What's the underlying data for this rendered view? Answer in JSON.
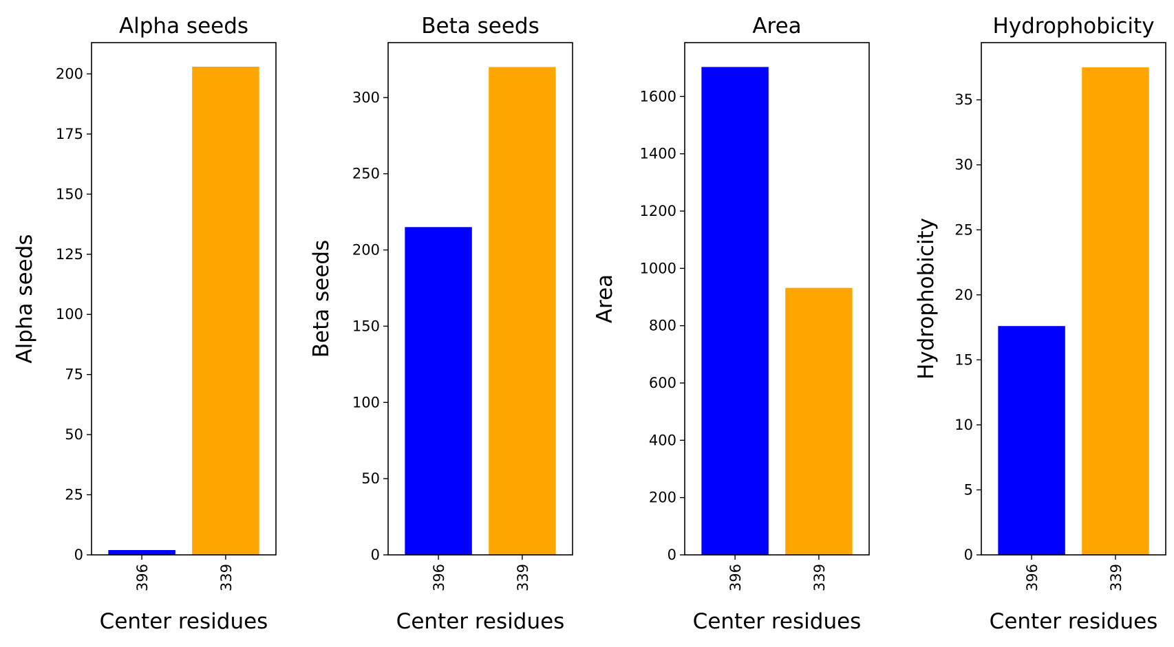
{
  "chart_data": [
    {
      "type": "bar",
      "title": "Alpha seeds",
      "xlabel": "Center residues",
      "ylabel": "Alpha seeds",
      "categories": [
        "396",
        "339"
      ],
      "values": [
        2,
        203
      ],
      "colors": [
        "#0000ff",
        "#ffa500"
      ],
      "ylim": [
        0,
        213
      ],
      "yticks": [
        0,
        25,
        50,
        75,
        100,
        125,
        150,
        175,
        200
      ],
      "grid": false,
      "legend": "none"
    },
    {
      "type": "bar",
      "title": "Beta seeds",
      "xlabel": "Center residues",
      "ylabel": "Beta seeds",
      "categories": [
        "396",
        "339"
      ],
      "values": [
        215,
        320
      ],
      "colors": [
        "#0000ff",
        "#ffa500"
      ],
      "ylim": [
        0,
        336
      ],
      "yticks": [
        0,
        50,
        100,
        150,
        200,
        250,
        300
      ],
      "grid": false,
      "legend": "none"
    },
    {
      "type": "bar",
      "title": "Area",
      "xlabel": "Center residues",
      "ylabel": "Area",
      "categories": [
        "396",
        "339"
      ],
      "values": [
        1703,
        932
      ],
      "colors": [
        "#0000ff",
        "#ffa500"
      ],
      "ylim": [
        0,
        1788
      ],
      "yticks": [
        0,
        200,
        400,
        600,
        800,
        1000,
        1200,
        1400,
        1600
      ],
      "grid": false,
      "legend": "none"
    },
    {
      "type": "bar",
      "title": "Hydrophobicity",
      "xlabel": "Center residues",
      "ylabel": "Hydrophobicity",
      "categories": [
        "396",
        "339"
      ],
      "values": [
        17.6,
        37.5
      ],
      "colors": [
        "#0000ff",
        "#ffa500"
      ],
      "ylim": [
        0,
        39.4
      ],
      "yticks": [
        0,
        5,
        10,
        15,
        20,
        25,
        30,
        35
      ],
      "grid": false,
      "legend": "none"
    }
  ]
}
